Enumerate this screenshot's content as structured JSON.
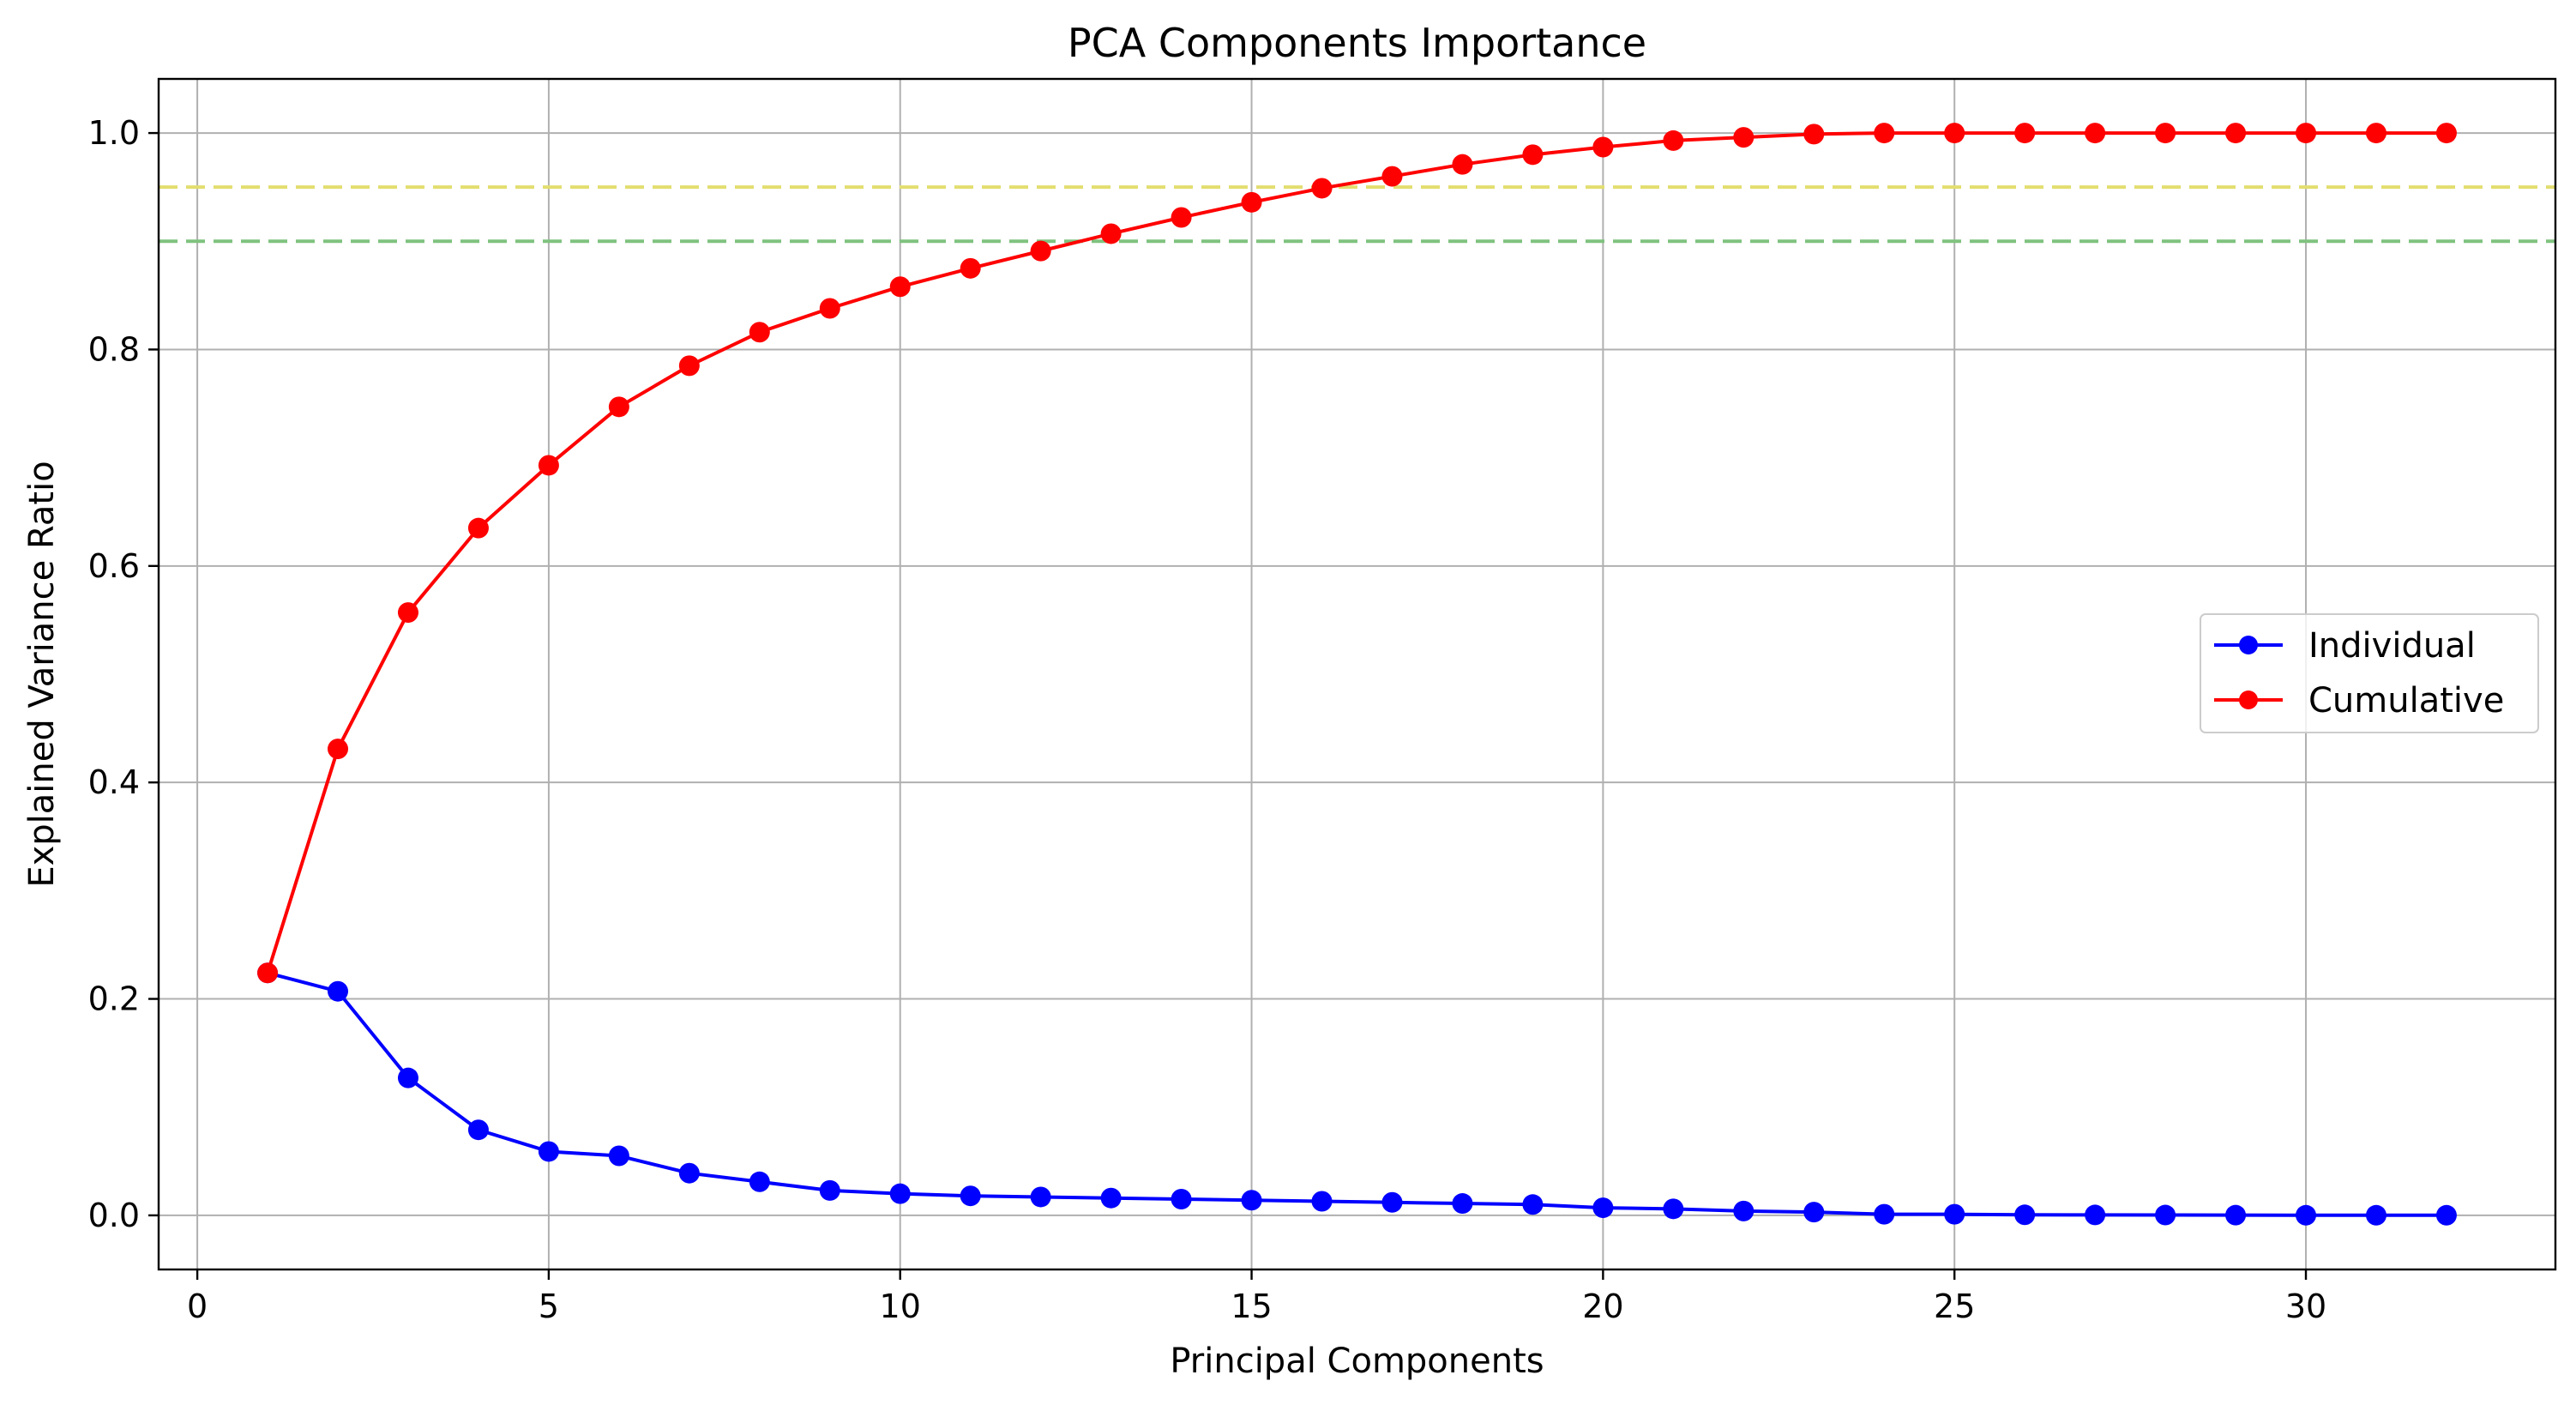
{
  "chart_data": {
    "type": "line",
    "title": "PCA Components Importance",
    "xlabel": "Principal Components",
    "ylabel": "Explained Variance Ratio",
    "xlim": [
      -0.55,
      33.55
    ],
    "ylim": [
      -0.05,
      1.05
    ],
    "xticks": [
      0,
      5,
      10,
      15,
      20,
      25,
      30
    ],
    "yticks": [
      0.0,
      0.2,
      0.4,
      0.6,
      0.8,
      1.0
    ],
    "grid": true,
    "legend_position": "center-right",
    "x": [
      1,
      2,
      3,
      4,
      5,
      6,
      7,
      8,
      9,
      10,
      11,
      12,
      13,
      14,
      15,
      16,
      17,
      18,
      19,
      20,
      21,
      22,
      23,
      24,
      25,
      26,
      27,
      28,
      29,
      30,
      31,
      32
    ],
    "series": [
      {
        "name": "Individual",
        "color": "#0000ff",
        "marker": "circle",
        "values": [
          0.224,
          0.207,
          0.127,
          0.079,
          0.059,
          0.055,
          0.039,
          0.031,
          0.023,
          0.02,
          0.018,
          0.017,
          0.016,
          0.015,
          0.014,
          0.013,
          0.012,
          0.011,
          0.01,
          0.007,
          0.006,
          0.004,
          0.003,
          0.001,
          0.001,
          0.0005,
          0.0004,
          0.0003,
          0.0002,
          0.0001,
          0.0001,
          0.0001
        ]
      },
      {
        "name": "Cumulative",
        "color": "#ff0000",
        "marker": "circle",
        "values": [
          0.224,
          0.431,
          0.557,
          0.635,
          0.693,
          0.747,
          0.785,
          0.816,
          0.838,
          0.858,
          0.875,
          0.891,
          0.907,
          0.922,
          0.936,
          0.949,
          0.96,
          0.971,
          0.98,
          0.987,
          0.993,
          0.996,
          0.999,
          1.0,
          1.0,
          1.0,
          1.0,
          1.0,
          1.0,
          1.0,
          1.0,
          1.0
        ]
      }
    ],
    "reference_lines": [
      {
        "y": 0.95,
        "color": "#e3de6f",
        "style": "dashed"
      },
      {
        "y": 0.9,
        "color": "#7fc27f",
        "style": "dashed"
      }
    ],
    "legend": {
      "entries": [
        "Individual",
        "Cumulative"
      ]
    },
    "colors": {
      "grid": "#b0b0b0",
      "axes": "#000000",
      "background": "#ffffff"
    }
  }
}
